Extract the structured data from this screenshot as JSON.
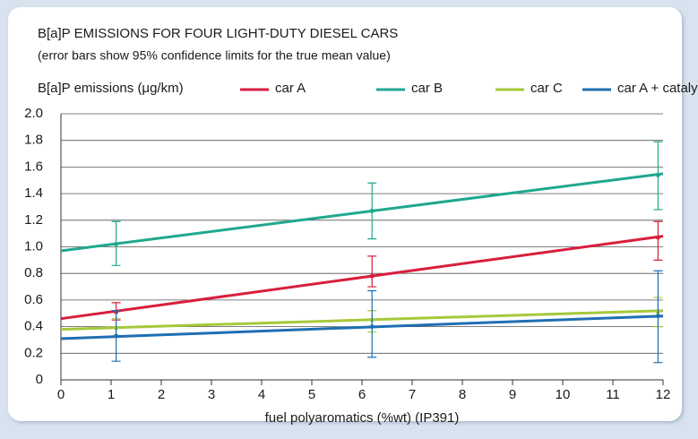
{
  "chart_data": {
    "type": "line",
    "title": "B[a]P EMISSIONS FOR FOUR LIGHT-DUTY DIESEL CARS",
    "subtitle": "(error bars show 95% confidence limits for the true mean value)",
    "y_label": "B[a]P emissions (μg/km)",
    "x_label": "fuel polyaromatics (%wt) (IP391)",
    "xlim": [
      0,
      12
    ],
    "xticks": [
      0,
      1,
      2,
      3,
      4,
      5,
      6,
      7,
      8,
      9,
      10,
      11,
      12
    ],
    "ylim": [
      0,
      2
    ],
    "yticks": [
      0,
      0.2,
      0.4,
      0.6,
      0.8,
      {
        "value": 1,
        "label": "1.0"
      },
      1.2,
      1.4,
      1.6,
      1.8,
      {
        "value": 2,
        "label": "2.0"
      }
    ],
    "grid": true,
    "legend": "top",
    "series": [
      {
        "name": "car A",
        "color": "#d81e3c",
        "x": [
          1.1,
          6.2,
          11.9
        ],
        "values": [
          0.51,
          0.78,
          1.07
        ],
        "lower": [
          0.45,
          0.7,
          0.9
        ],
        "upper": [
          0.58,
          0.93,
          1.19
        ],
        "fit": [
          0.46,
          1.08
        ]
      },
      {
        "name": "car B",
        "color": "#1fa88f",
        "x": [
          1.1,
          6.2,
          11.9
        ],
        "values": [
          1.02,
          1.27,
          1.54
        ],
        "lower": [
          0.86,
          1.06,
          1.28
        ],
        "upper": [
          1.19,
          1.48,
          1.79
        ],
        "fit": [
          0.97,
          1.55
        ]
      },
      {
        "name": "car C",
        "color": "#a5c93a",
        "x": [
          1.1,
          6.2,
          11.9
        ],
        "values": [
          0.39,
          0.45,
          0.51
        ],
        "lower": [
          0.33,
          0.36,
          0.4
        ],
        "upper": [
          0.46,
          0.52,
          0.62
        ],
        "fit": [
          0.38,
          0.52
        ]
      },
      {
        "name": "car A + catalyst",
        "color": "#1f6fb2",
        "x": [
          1.1,
          6.2,
          11.9
        ],
        "values": [
          0.33,
          0.4,
          0.48
        ],
        "lower": [
          0.14,
          0.17,
          0.13
        ],
        "upper": [
          0.52,
          0.67,
          0.82
        ],
        "fit": [
          0.31,
          0.48
        ]
      }
    ]
  }
}
